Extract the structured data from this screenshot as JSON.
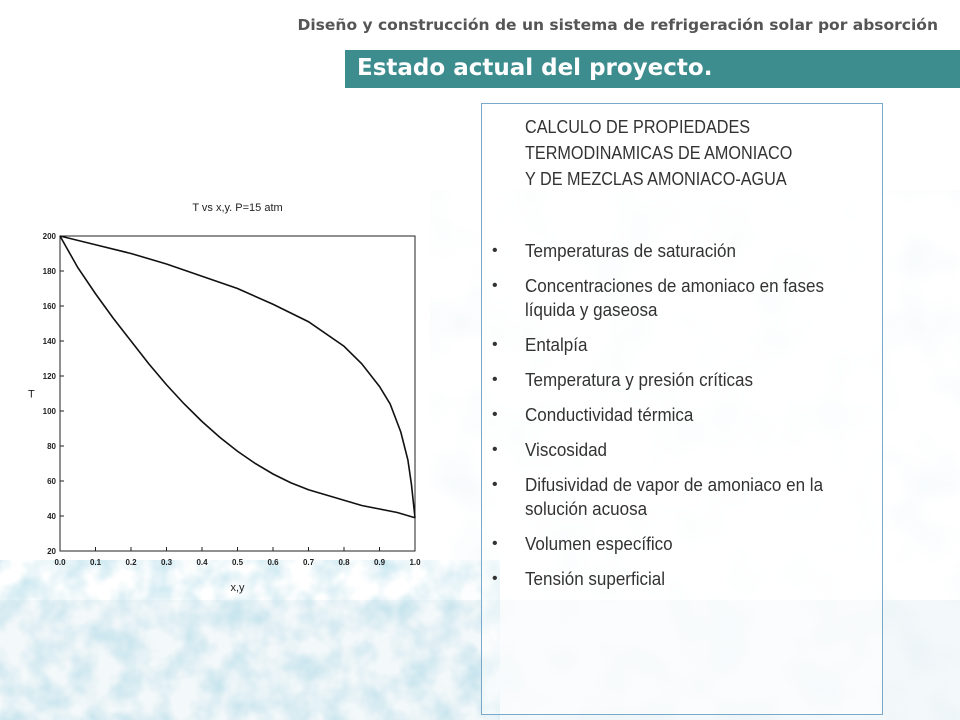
{
  "header": {
    "title": "Diseño y construcción de un sistema de refrigeración solar por absorción"
  },
  "title_bar": {
    "text": "Estado actual del proyecto."
  },
  "content": {
    "heading_lines": [
      "CALCULO DE PROPIEDADES",
      "TERMODINAMICAS DE AMONIACO",
      "Y DE MEZCLAS AMONIACO-AGUA"
    ],
    "bullet_symbol": "•",
    "bullets": [
      "Temperaturas de saturación",
      "Concentraciones  de amoniaco en fases líquida y  gaseosa",
      "Entalpía",
      "Temperatura y presión críticas",
      "Conductividad térmica",
      "Viscosidad",
      "Difusividad de vapor de amoniaco en la solución acuosa",
      "Volumen específico",
      "Tensión superficial"
    ]
  },
  "chart_data": {
    "type": "line",
    "title": "T vs x,y. P=15 atm",
    "xlabel": "x,y",
    "ylabel": "T",
    "xlim": [
      0.0,
      1.0
    ],
    "ylim": [
      20,
      200
    ],
    "x_ticks": [
      "0.0",
      "0.1",
      "0.2",
      "0.3",
      "0.4",
      "0.5",
      "0.6",
      "0.7",
      "0.8",
      "0.9",
      "1.0"
    ],
    "y_ticks": [
      "20",
      "40",
      "60",
      "80",
      "100",
      "120",
      "140",
      "160",
      "180",
      "200"
    ],
    "grid": false,
    "series": [
      {
        "x": [
          0.0,
          0.05,
          0.1,
          0.15,
          0.2,
          0.25,
          0.3,
          0.35,
          0.4,
          0.45,
          0.5,
          0.55,
          0.6,
          0.65,
          0.7,
          0.75,
          0.8,
          0.85,
          0.9,
          0.95,
          1.0
        ],
        "y": [
          200,
          182,
          167,
          153,
          140,
          127,
          115,
          104,
          94,
          85,
          77,
          70,
          64,
          59,
          55,
          52,
          49,
          46,
          44,
          42,
          39
        ]
      },
      {
        "x": [
          0.0,
          0.1,
          0.2,
          0.3,
          0.4,
          0.5,
          0.6,
          0.7,
          0.8,
          0.85,
          0.9,
          0.93,
          0.96,
          0.98,
          0.99,
          1.0
        ],
        "y": [
          200,
          195,
          190,
          184,
          177,
          170,
          161,
          151,
          137,
          127,
          114,
          104,
          88,
          72,
          58,
          39
        ]
      }
    ],
    "colors": {
      "line": "#111111",
      "axis": "#222222"
    }
  }
}
